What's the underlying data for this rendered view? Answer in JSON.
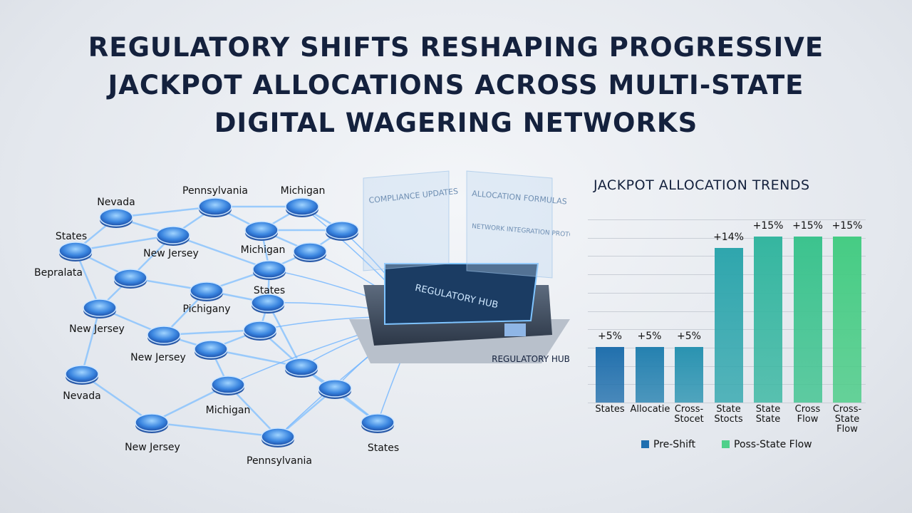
{
  "header": {
    "title": "REGULATORY SHIFTS RESHAPING PROGRESSIVE JACKPOT ALLOCATIONS ACROSS MULTI-STATE DIGITAL WAGERING NETWORKS"
  },
  "network": {
    "node_labels": [
      "Nevada",
      "Pennsylvania",
      "Michigan",
      "States",
      "New Jersey",
      "Michigan",
      "Bepralata",
      "States",
      "Pichigany",
      "New Jersey",
      "New Jersey",
      "Nevada",
      "Michigan",
      "New Jersey",
      "States",
      "Pennsylvania"
    ],
    "hub_label": "REGULATORY HUB",
    "screen_label": "REGULATORY HUB",
    "panels": [
      "COMPLIANCE UPDATES",
      "ALLOCATION FORMULAS",
      "NETWORK INTEGRATION PROTOCOLS"
    ]
  },
  "chart_data": {
    "type": "bar",
    "title": "JACKPOT ALLOCATION TRENDS",
    "categories": [
      "States",
      "Allocatie",
      "Cross- Stocet",
      "State Stocts",
      "State State",
      "Cross Flow",
      "Cross- State Flow"
    ],
    "values": [
      5,
      5,
      5,
      14,
      15,
      15,
      15
    ],
    "value_labels": [
      "+5%",
      "+5%",
      "+5%",
      "+14%",
      "+15%",
      "+15%",
      "+15%"
    ],
    "colors": [
      "#2170ad",
      "#2581b0",
      "#2a93b1",
      "#2fa6ad",
      "#35b6a0",
      "#3cc38e",
      "#46cc84"
    ],
    "legend": [
      {
        "name": "Pre-Shift",
        "color": "#1f6fb0"
      },
      {
        "name": "Poss-State Flow",
        "color": "#4fd08a"
      }
    ],
    "grid": true
  }
}
